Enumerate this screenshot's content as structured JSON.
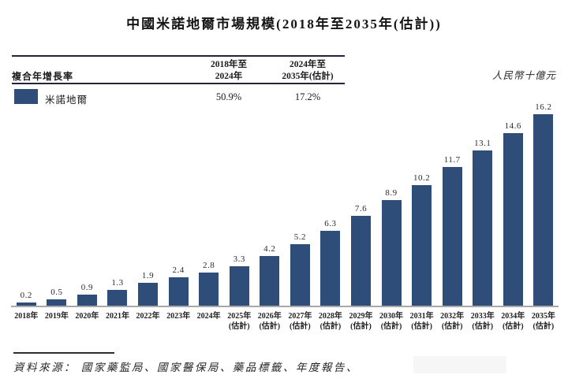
{
  "title": "中國米諾地爾市場規模(2018年至2035年(估計))",
  "unit_label": "人民幣十億元",
  "cagr_table": {
    "row_header": "複合年增長率",
    "columns": [
      {
        "line1": "2018年至",
        "line2": "2024年"
      },
      {
        "line1": "2024年至",
        "line2": "2035年(估計)"
      }
    ],
    "row": {
      "label": "米諾地爾",
      "values": [
        "50.9%",
        "17.2%"
      ]
    }
  },
  "source_note": "資料來源： 國家藥監局、國家醫保局、藥品標籤、年度報告、",
  "colors": {
    "bar": "#2e4e79",
    "axis": "#a8a8a8"
  },
  "chart_data": {
    "type": "bar",
    "title": "中國米諾地爾市場規模(2018年至2035年(估計))",
    "ylabel": "人民幣十億元",
    "xlabel": "",
    "ylim": [
      0,
      17
    ],
    "grid": false,
    "legend": [
      "米諾地爾"
    ],
    "legend_position": "table-top-left",
    "categories": [
      "2018年",
      "2019年",
      "2020年",
      "2021年",
      "2022年",
      "2023年",
      "2024年",
      "2025年(估計)",
      "2026年(估計)",
      "2027年(估計)",
      "2028年(估計)",
      "2029年(估計)",
      "2030年(估計)",
      "2031年(估計)",
      "2032年(估計)",
      "2033年(估計)",
      "2034年(估計)",
      "2035年(估計)"
    ],
    "values": [
      0.2,
      0.5,
      0.9,
      1.3,
      1.9,
      2.4,
      2.8,
      3.3,
      4.2,
      5.2,
      6.3,
      7.6,
      8.9,
      10.2,
      11.7,
      13.1,
      14.6,
      16.2
    ]
  }
}
